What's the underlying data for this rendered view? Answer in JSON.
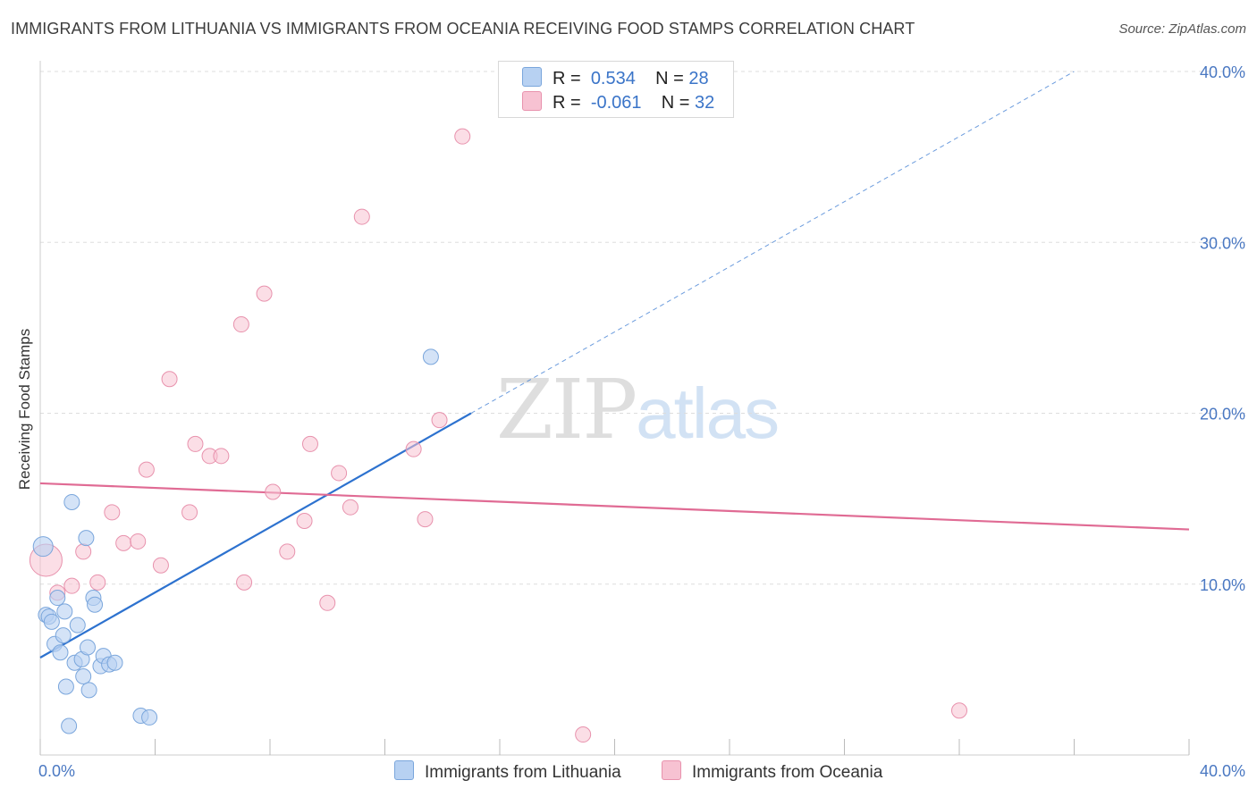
{
  "title": "IMMIGRANTS FROM LITHUANIA VS IMMIGRANTS FROM OCEANIA RECEIVING FOOD STAMPS CORRELATION CHART",
  "source": "Source: ZipAtlas.com",
  "watermark": {
    "zip": "ZIP",
    "atlas": "atlas"
  },
  "colors": {
    "blue_fill": "#b7d1f2",
    "blue_stroke": "#7aa6dc",
    "blue_line": "#2d72cf",
    "pink_fill": "#f7c2d2",
    "pink_stroke": "#e892ad",
    "pink_line": "#e06b94",
    "tick_label": "#4a78c2",
    "grid": "#dddddd"
  },
  "legend": {
    "rows": [
      {
        "r_label": "R =",
        "r_value": "0.534",
        "n_label": "N =",
        "n_value": "28"
      },
      {
        "r_label": "R =",
        "r_value": "-0.061",
        "n_label": "N =",
        "n_value": "32"
      }
    ]
  },
  "chart_data": {
    "type": "scatter",
    "title": "IMMIGRANTS FROM LITHUANIA VS IMMIGRANTS FROM OCEANIA RECEIVING FOOD STAMPS CORRELATION CHART",
    "xlabel": "",
    "ylabel": "Receiving Food Stamps",
    "xlim": [
      0,
      40
    ],
    "ylim": [
      0,
      40
    ],
    "x_tick_labels": [
      "0.0%",
      "40.0%"
    ],
    "y_ticks": [
      10,
      20,
      30,
      40
    ],
    "y_tick_labels": [
      "10.0%",
      "20.0%",
      "30.0%",
      "40.0%"
    ],
    "grid": true,
    "legend_position": "top-center",
    "series": [
      {
        "name": "Immigrants from Lithuania",
        "color": "blue",
        "points": [
          [
            0.1,
            12.2
          ],
          [
            0.2,
            8.2
          ],
          [
            0.3,
            8.1
          ],
          [
            0.4,
            7.8
          ],
          [
            0.5,
            6.5
          ],
          [
            0.6,
            9.2
          ],
          [
            0.7,
            6.0
          ],
          [
            0.8,
            7.0
          ],
          [
            0.85,
            8.4
          ],
          [
            0.9,
            4.0
          ],
          [
            1.0,
            1.7
          ],
          [
            1.1,
            14.8
          ],
          [
            1.2,
            5.4
          ],
          [
            1.3,
            7.6
          ],
          [
            1.45,
            5.6
          ],
          [
            1.5,
            4.6
          ],
          [
            1.6,
            12.7
          ],
          [
            1.65,
            6.3
          ],
          [
            1.7,
            3.8
          ],
          [
            1.85,
            9.2
          ],
          [
            1.9,
            8.8
          ],
          [
            2.1,
            5.2
          ],
          [
            2.2,
            5.8
          ],
          [
            2.4,
            5.3
          ],
          [
            2.6,
            5.4
          ],
          [
            3.5,
            2.3
          ],
          [
            3.8,
            2.2
          ],
          [
            13.6,
            23.3
          ]
        ],
        "trend": {
          "x": [
            0,
            15
          ],
          "y": [
            5.7,
            20.0
          ],
          "extended_x": [
            15,
            36
          ],
          "extended_y": [
            20.0,
            40.0
          ]
        }
      },
      {
        "name": "Immigrants from Oceania",
        "color": "pink",
        "points": [
          [
            0.2,
            11.4
          ],
          [
            0.6,
            9.5
          ],
          [
            1.1,
            9.9
          ],
          [
            1.5,
            11.9
          ],
          [
            2.0,
            10.1
          ],
          [
            2.5,
            14.2
          ],
          [
            2.9,
            12.4
          ],
          [
            3.4,
            12.5
          ],
          [
            3.7,
            16.7
          ],
          [
            4.2,
            11.1
          ],
          [
            4.5,
            22.0
          ],
          [
            5.2,
            14.2
          ],
          [
            5.4,
            18.2
          ],
          [
            5.9,
            17.5
          ],
          [
            6.3,
            17.5
          ],
          [
            7.0,
            25.2
          ],
          [
            7.1,
            10.1
          ],
          [
            7.8,
            27.0
          ],
          [
            8.1,
            15.4
          ],
          [
            8.6,
            11.9
          ],
          [
            9.2,
            13.7
          ],
          [
            9.4,
            18.2
          ],
          [
            10.0,
            8.9
          ],
          [
            10.4,
            16.5
          ],
          [
            10.8,
            14.5
          ],
          [
            11.2,
            31.5
          ],
          [
            13.0,
            17.9
          ],
          [
            13.4,
            13.8
          ],
          [
            13.9,
            19.6
          ],
          [
            14.7,
            36.2
          ],
          [
            18.9,
            1.2
          ],
          [
            32.0,
            2.6
          ]
        ],
        "trend": {
          "x": [
            0,
            40
          ],
          "y": [
            15.9,
            13.2
          ]
        }
      }
    ]
  }
}
